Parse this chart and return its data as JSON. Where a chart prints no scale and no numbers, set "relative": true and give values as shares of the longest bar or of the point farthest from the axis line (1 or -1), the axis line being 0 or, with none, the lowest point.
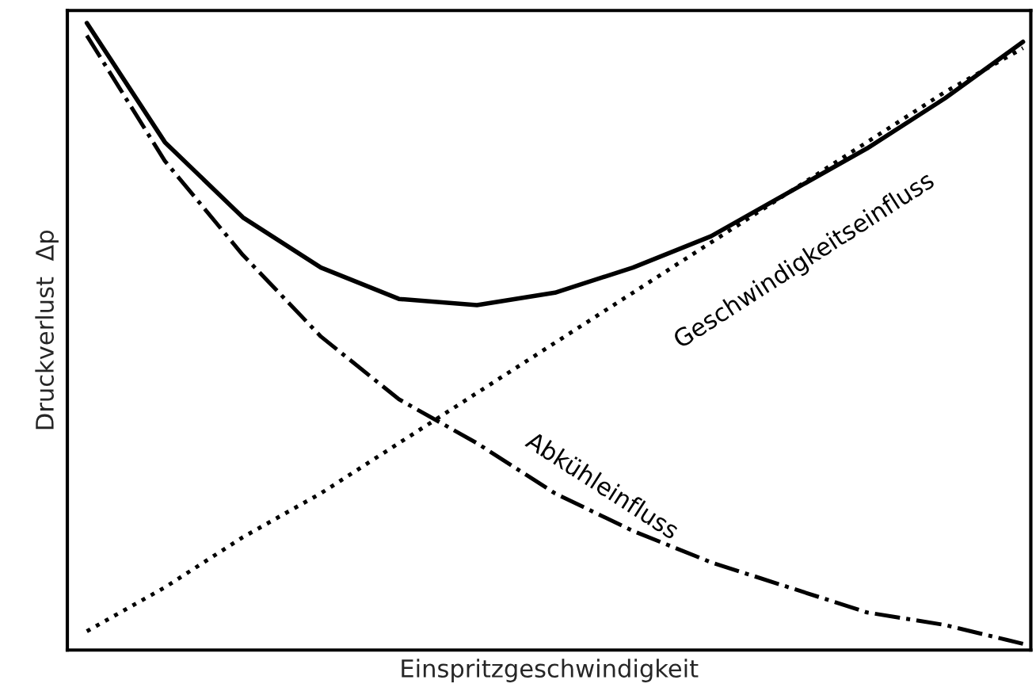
{
  "chart_data": {
    "type": "line",
    "relative": true,
    "xlabel": "Einspritzgeschwindigkeit",
    "ylabel": "Druckverlust  Δp",
    "categories": [
      null,
      null,
      null,
      null,
      null,
      null,
      null,
      null,
      null,
      null,
      null,
      null,
      null
    ],
    "series": [
      {
        "color": "#000000",
        "line_style": "solid",
        "values": [
          1.0,
          0.81,
          0.69,
          0.61,
          0.56,
          0.55,
          0.57,
          0.61,
          0.66,
          0.73,
          0.8,
          0.88,
          0.97
        ]
      },
      {
        "name": "Geschwindigkeitseinfluss",
        "color": "#000000",
        "line_style": "dotted",
        "values": [
          0.03,
          0.1,
          0.18,
          0.25,
          0.33,
          0.41,
          0.49,
          0.57,
          0.65,
          0.73,
          0.81,
          0.89,
          0.96
        ]
      },
      {
        "name": "Abkühleinfluss",
        "color": "#000000",
        "line_style": "dashdot",
        "values": [
          0.98,
          0.78,
          0.63,
          0.5,
          0.4,
          0.33,
          0.25,
          0.19,
          0.14,
          0.1,
          0.06,
          0.04,
          0.01
        ]
      }
    ],
    "grid": false,
    "legend": false,
    "tick_labels": false
  }
}
